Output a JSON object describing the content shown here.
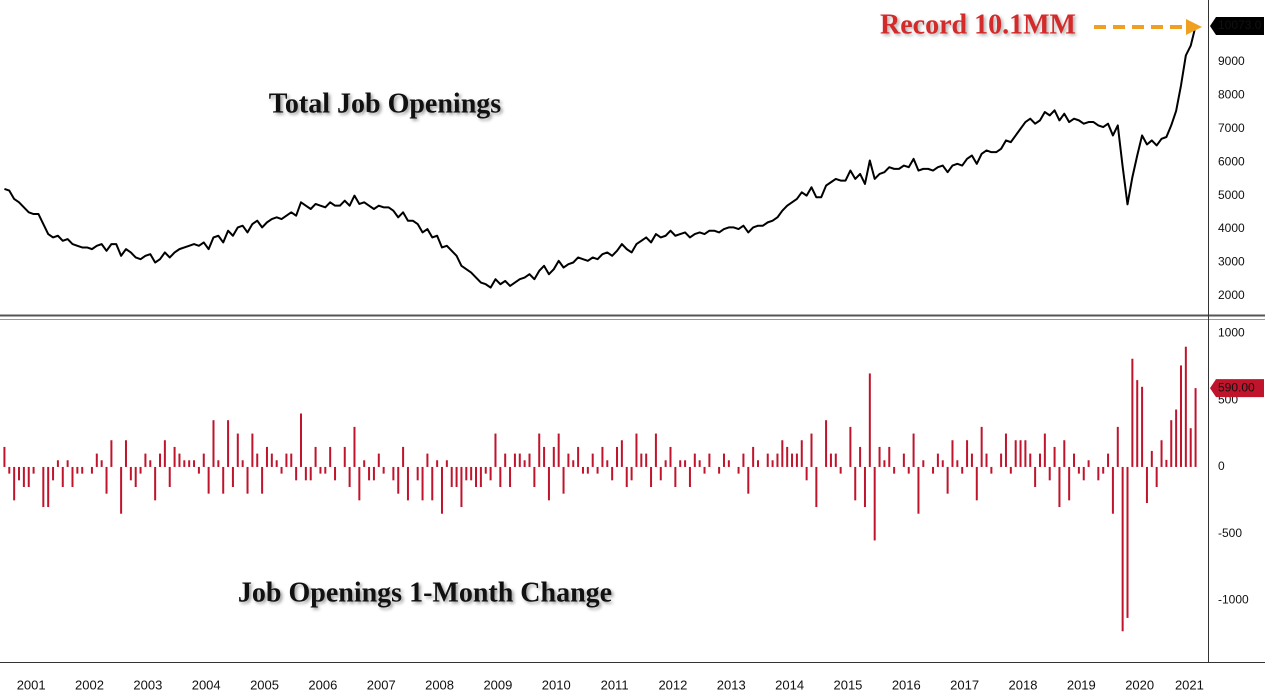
{
  "chart_data": [
    {
      "type": "line",
      "title": "Total Job Openings",
      "annotation": "Record 10.1MM",
      "color": "#000000",
      "grid": true,
      "ylim": [
        1460,
        10850
      ],
      "yticks": [
        2000,
        3000,
        4000,
        5000,
        6000,
        7000,
        8000,
        9000
      ],
      "values": [
        5200,
        5150,
        4900,
        4800,
        4650,
        4500,
        4450,
        4450,
        4150,
        3850,
        3750,
        3800,
        3650,
        3700,
        3550,
        3500,
        3450,
        3450,
        3400,
        3500,
        3550,
        3350,
        3550,
        3550,
        3200,
        3400,
        3300,
        3150,
        3100,
        3200,
        3250,
        3000,
        3100,
        3300,
        3150,
        3300,
        3400,
        3450,
        3500,
        3550,
        3500,
        3600,
        3400,
        3750,
        3800,
        3600,
        3950,
        3800,
        4050,
        4100,
        3900,
        4150,
        4250,
        4050,
        4200,
        4300,
        4350,
        4300,
        4400,
        4500,
        4400,
        4800,
        4700,
        4600,
        4750,
        4700,
        4650,
        4800,
        4700,
        4700,
        4850,
        4700,
        5000,
        4750,
        4800,
        4700,
        4600,
        4700,
        4650,
        4650,
        4550,
        4350,
        4500,
        4250,
        4250,
        4150,
        3900,
        4000,
        3750,
        3800,
        3450,
        3500,
        3350,
        3200,
        2900,
        2800,
        2700,
        2550,
        2400,
        2350,
        2250,
        2500,
        2350,
        2450,
        2300,
        2400,
        2500,
        2550,
        2650,
        2500,
        2750,
        2900,
        2650,
        2800,
        3050,
        2850,
        2950,
        3000,
        3150,
        3100,
        3050,
        3150,
        3100,
        3250,
        3300,
        3200,
        3350,
        3550,
        3400,
        3300,
        3550,
        3650,
        3750,
        3600,
        3850,
        3750,
        3800,
        3950,
        3800,
        3850,
        3900,
        3750,
        3850,
        3900,
        3850,
        3950,
        3950,
        3900,
        4000,
        4050,
        4050,
        4000,
        4100,
        3900,
        4050,
        4100,
        4100,
        4200,
        4250,
        4350,
        4550,
        4700,
        4800,
        4900,
        5100,
        5000,
        5250,
        4950,
        4950,
        5300,
        5400,
        5500,
        5450,
        5450,
        5750,
        5500,
        5650,
        5350,
        6050,
        5500,
        5650,
        5700,
        5850,
        5800,
        5800,
        5900,
        5850,
        6100,
        5750,
        5800,
        5800,
        5750,
        5850,
        5900,
        5700,
        5900,
        5950,
        5900,
        6100,
        6200,
        5950,
        6250,
        6350,
        6300,
        6300,
        6400,
        6650,
        6600,
        6800,
        7000,
        7200,
        7300,
        7150,
        7250,
        7500,
        7400,
        7550,
        7250,
        7450,
        7200,
        7300,
        7250,
        7150,
        7200,
        7200,
        7100,
        7050,
        7150,
        6800,
        7100,
        5870,
        4740,
        5550,
        6200,
        6800,
        6530,
        6650,
        6500,
        6700,
        6753,
        7103,
        7533,
        8293,
        9193,
        9483,
        10073
      ],
      "value_labels": [
        null,
        null,
        null,
        null,
        null,
        null,
        null,
        null,
        null,
        null,
        null,
        null,
        null,
        null,
        null,
        null,
        null,
        null,
        null,
        null,
        null,
        null,
        null,
        null,
        null,
        null,
        null,
        null,
        null,
        null,
        null,
        null,
        null,
        null,
        null,
        null,
        null,
        null,
        null,
        null,
        null,
        null,
        null,
        null,
        null,
        null,
        null,
        null,
        null,
        null,
        null,
        null,
        null,
        null,
        null,
        null,
        null,
        null,
        null,
        null,
        null,
        null,
        null,
        null,
        null,
        null,
        null,
        null,
        null,
        null,
        null,
        null,
        null,
        null,
        null,
        null,
        null,
        null,
        null,
        null,
        null,
        null,
        null,
        null,
        null,
        null,
        null,
        null,
        null,
        null,
        null,
        null,
        null,
        null,
        null,
        null,
        null,
        null,
        null,
        null,
        null,
        null,
        null,
        null,
        null,
        null,
        null,
        null,
        null,
        null,
        null,
        null,
        null,
        null,
        null,
        null,
        null,
        null,
        null,
        null,
        null,
        null,
        null,
        null,
        null,
        null,
        null,
        null,
        null,
        null,
        null,
        null,
        null,
        null,
        null,
        null,
        null,
        null,
        null,
        null,
        null,
        null,
        null,
        null,
        null,
        null,
        null,
        null,
        null,
        null,
        null,
        null,
        null,
        null,
        null,
        null,
        null,
        null,
        null,
        null,
        null,
        null,
        null,
        null,
        null,
        null,
        null,
        null,
        null,
        null,
        null,
        null,
        null,
        null,
        null,
        null,
        null,
        null,
        null,
        null,
        null,
        null,
        null,
        null,
        null,
        null,
        null,
        null,
        null,
        null,
        null,
        null,
        null,
        null,
        null,
        null,
        null,
        null,
        null,
        null,
        null,
        null,
        null,
        null,
        null,
        null,
        null,
        null,
        null,
        null,
        null,
        null,
        null,
        null,
        null,
        null,
        null,
        null,
        null,
        null,
        null,
        null,
        null,
        null,
        null,
        null,
        null,
        null,
        null,
        null,
        null,
        null,
        null,
        null,
        null,
        null,
        null,
        null,
        null,
        null,
        null,
        null,
        null,
        null,
        null,
        "10073.0"
      ]
    },
    {
      "type": "bar",
      "title": "Job Openings 1-Month Change",
      "color": "#c0142c",
      "grid": true,
      "ylim": [
        -1460,
        1100
      ],
      "yticks": [
        1000,
        500,
        0,
        -500,
        -1000
      ],
      "categories": [
        "2001",
        null,
        null,
        null,
        null,
        null,
        null,
        null,
        null,
        null,
        null,
        null,
        "2002",
        null,
        null,
        null,
        null,
        null,
        null,
        null,
        null,
        null,
        null,
        null,
        "2003",
        null,
        null,
        null,
        null,
        null,
        null,
        null,
        null,
        null,
        null,
        null,
        "2004",
        null,
        null,
        null,
        null,
        null,
        null,
        null,
        null,
        null,
        null,
        null,
        "2005",
        null,
        null,
        null,
        null,
        null,
        null,
        null,
        null,
        null,
        null,
        null,
        "2006",
        null,
        null,
        null,
        null,
        null,
        null,
        null,
        null,
        null,
        null,
        null,
        "2007",
        null,
        null,
        null,
        null,
        null,
        null,
        null,
        null,
        null,
        null,
        null,
        "2008",
        null,
        null,
        null,
        null,
        null,
        null,
        null,
        null,
        null,
        null,
        null,
        "2009",
        null,
        null,
        null,
        null,
        null,
        null,
        null,
        null,
        null,
        null,
        null,
        "2010",
        null,
        null,
        null,
        null,
        null,
        null,
        null,
        null,
        null,
        null,
        null,
        "2011",
        null,
        null,
        null,
        null,
        null,
        null,
        null,
        null,
        null,
        null,
        null,
        "2012",
        null,
        null,
        null,
        null,
        null,
        null,
        null,
        null,
        null,
        null,
        null,
        "2013",
        null,
        null,
        null,
        null,
        null,
        null,
        null,
        null,
        null,
        null,
        null,
        "2014",
        null,
        null,
        null,
        null,
        null,
        null,
        null,
        null,
        null,
        null,
        null,
        "2015",
        null,
        null,
        null,
        null,
        null,
        null,
        null,
        null,
        null,
        null,
        null,
        "2016",
        null,
        null,
        null,
        null,
        null,
        null,
        null,
        null,
        null,
        null,
        null,
        "2017",
        null,
        null,
        null,
        null,
        null,
        null,
        null,
        null,
        null,
        null,
        null,
        "2018",
        null,
        null,
        null,
        null,
        null,
        null,
        null,
        null,
        null,
        null,
        null,
        "2019",
        null,
        null,
        null,
        null,
        null,
        null,
        null,
        null,
        null,
        null,
        null,
        "2020",
        null,
        null,
        null,
        null,
        null,
        null,
        null,
        null,
        null,
        null,
        null,
        "2021",
        null,
        null,
        null,
        null,
        null
      ],
      "values": [
        150,
        -50,
        -250,
        -100,
        -150,
        -150,
        -50,
        0,
        -300,
        -300,
        -100,
        50,
        -150,
        50,
        -150,
        -50,
        -50,
        0,
        -50,
        100,
        50,
        -200,
        200,
        0,
        -350,
        200,
        -100,
        -150,
        -50,
        100,
        50,
        -250,
        100,
        200,
        -150,
        150,
        100,
        50,
        50,
        50,
        -50,
        100,
        -200,
        350,
        50,
        -200,
        350,
        -150,
        250,
        50,
        -200,
        250,
        100,
        -200,
        150,
        100,
        50,
        -50,
        100,
        100,
        -100,
        400,
        -100,
        -100,
        150,
        -50,
        -50,
        150,
        -100,
        0,
        150,
        -150,
        300,
        -250,
        50,
        -100,
        -100,
        100,
        -50,
        0,
        -100,
        -200,
        150,
        -250,
        0,
        -100,
        -250,
        100,
        -250,
        50,
        -350,
        50,
        -150,
        -150,
        -300,
        -100,
        -100,
        -150,
        -150,
        -50,
        -100,
        250,
        -150,
        100,
        -150,
        100,
        100,
        50,
        100,
        -150,
        250,
        150,
        -250,
        150,
        250,
        -200,
        100,
        50,
        150,
        -50,
        -50,
        100,
        -50,
        150,
        50,
        -100,
        150,
        200,
        -150,
        -100,
        250,
        100,
        100,
        -150,
        250,
        -100,
        50,
        150,
        -150,
        50,
        50,
        -150,
        100,
        50,
        -50,
        100,
        0,
        -50,
        100,
        50,
        0,
        -50,
        100,
        -200,
        150,
        50,
        0,
        100,
        50,
        100,
        200,
        150,
        100,
        100,
        200,
        -100,
        250,
        -300,
        0,
        350,
        100,
        100,
        -50,
        0,
        300,
        -250,
        150,
        -300,
        700,
        -550,
        150,
        50,
        150,
        -50,
        0,
        100,
        -50,
        250,
        -350,
        50,
        0,
        -50,
        100,
        50,
        -200,
        200,
        50,
        -50,
        200,
        100,
        -250,
        300,
        100,
        -50,
        0,
        100,
        250,
        -50,
        200,
        200,
        200,
        100,
        -150,
        100,
        250,
        -100,
        150,
        -300,
        200,
        -250,
        100,
        -50,
        -100,
        50,
        0,
        -100,
        -50,
        100,
        -350,
        300,
        -1230,
        -1130,
        810,
        650,
        600,
        -270,
        120,
        -150,
        200,
        53,
        350,
        430,
        760,
        900,
        290,
        590
      ],
      "value_labels": [
        null,
        null,
        null,
        null,
        null,
        null,
        null,
        null,
        null,
        null,
        null,
        null,
        null,
        null,
        null,
        null,
        null,
        null,
        null,
        null,
        null,
        null,
        null,
        null,
        null,
        null,
        null,
        null,
        null,
        null,
        null,
        null,
        null,
        null,
        null,
        null,
        null,
        null,
        null,
        null,
        null,
        null,
        null,
        null,
        null,
        null,
        null,
        null,
        null,
        null,
        null,
        null,
        null,
        null,
        null,
        null,
        null,
        null,
        null,
        null,
        null,
        null,
        null,
        null,
        null,
        null,
        null,
        null,
        null,
        null,
        null,
        null,
        null,
        null,
        null,
        null,
        null,
        null,
        null,
        null,
        null,
        null,
        null,
        null,
        null,
        null,
        null,
        null,
        null,
        null,
        null,
        null,
        null,
        null,
        null,
        null,
        null,
        null,
        null,
        null,
        null,
        null,
        null,
        null,
        null,
        null,
        null,
        null,
        null,
        null,
        null,
        null,
        null,
        null,
        null,
        null,
        null,
        null,
        null,
        null,
        null,
        null,
        null,
        null,
        null,
        null,
        null,
        null,
        null,
        null,
        null,
        null,
        null,
        null,
        null,
        null,
        null,
        null,
        null,
        null,
        null,
        null,
        null,
        null,
        null,
        null,
        null,
        null,
        null,
        null,
        null,
        null,
        null,
        null,
        null,
        null,
        null,
        null,
        null,
        null,
        null,
        null,
        null,
        null,
        null,
        null,
        null,
        null,
        null,
        null,
        null,
        null,
        null,
        null,
        null,
        null,
        null,
        null,
        null,
        null,
        null,
        null,
        null,
        null,
        null,
        null,
        null,
        null,
        null,
        null,
        null,
        null,
        null,
        null,
        null,
        null,
        null,
        null,
        null,
        null,
        null,
        null,
        null,
        null,
        null,
        null,
        null,
        null,
        null,
        null,
        null,
        null,
        null,
        null,
        null,
        null,
        null,
        null,
        null,
        null,
        null,
        null,
        null,
        null,
        null,
        null,
        null,
        null,
        null,
        null,
        null,
        null,
        null,
        null,
        null,
        null,
        null,
        null,
        null,
        null,
        null,
        null,
        null,
        null,
        null,
        "590.00"
      ]
    }
  ]
}
